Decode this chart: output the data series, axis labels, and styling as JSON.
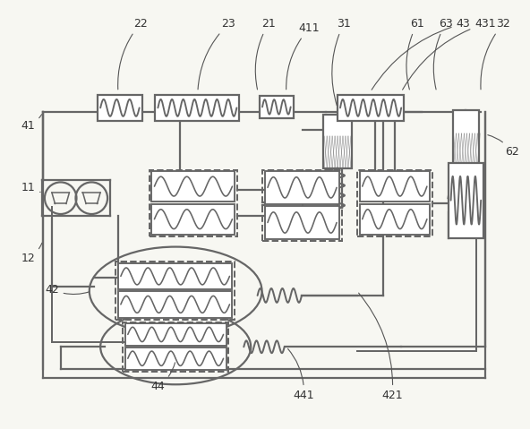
{
  "bg_color": "#f7f7f2",
  "lc": "#666666",
  "lw_main": 1.6,
  "lw_comp": 1.2,
  "figsize": [
    5.92,
    4.79
  ],
  "dpi": 100
}
